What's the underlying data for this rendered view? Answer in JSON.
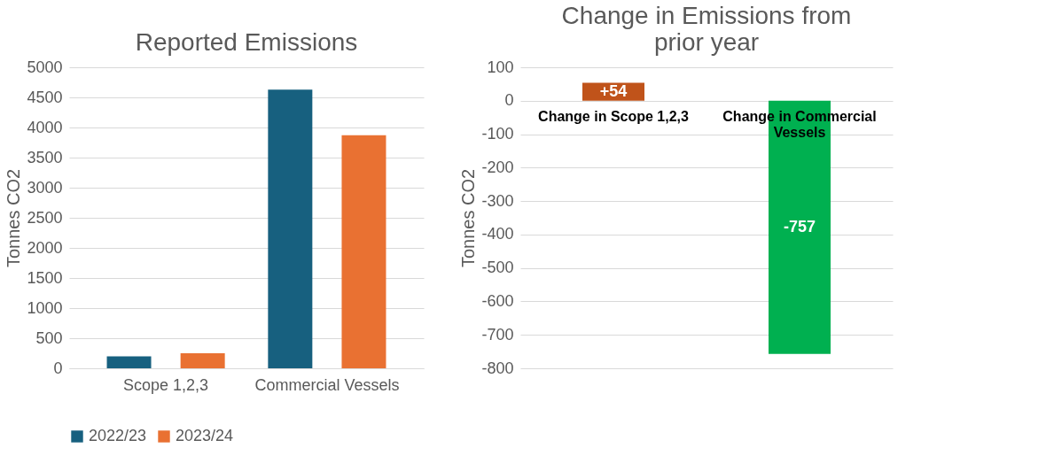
{
  "chart_data": [
    {
      "type": "bar",
      "title": "Reported Emissions",
      "ylabel": "Tonnes CO2",
      "categories": [
        "Scope 1,2,3",
        "Commercial Vessels"
      ],
      "series": [
        {
          "name": "2022/23",
          "color": "#17607f",
          "values": [
            200,
            4630
          ]
        },
        {
          "name": "2023/24",
          "color": "#e97132",
          "values": [
            250,
            3870
          ]
        }
      ],
      "ylim": [
        0,
        5000
      ],
      "yticks": [
        0,
        500,
        1000,
        1500,
        2000,
        2500,
        3000,
        3500,
        4000,
        4500,
        5000
      ],
      "grid": "y",
      "legend": "bottom"
    },
    {
      "type": "bar",
      "title": "Change in Emissions from prior year",
      "ylabel": "Tonnes CO2",
      "categories": [
        "Change in Scope 1,2,3",
        "Change in Commercial Vessels"
      ],
      "values": [
        54,
        -757
      ],
      "colors": [
        "#c0531a",
        "#00b050"
      ],
      "value_labels": [
        "+54",
        "-757"
      ],
      "ylim": [
        -800,
        100
      ],
      "yticks": [
        100,
        0,
        -100,
        -200,
        -300,
        -400,
        -500,
        -600,
        -700,
        -800
      ],
      "grid": "y"
    }
  ]
}
